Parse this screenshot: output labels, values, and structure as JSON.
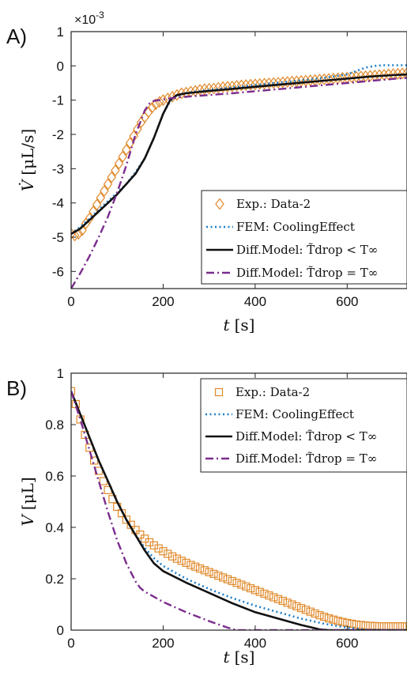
{
  "chart_data": [
    {
      "type": "line",
      "panel_label": "A)",
      "exponent_label": "×10",
      "exponent_power": "-3",
      "xlabel_var": "t",
      "xlabel_unit": "[s]",
      "ylabel_var": "V̇",
      "ylabel_unit": "[μL/s]",
      "xlim": [
        0,
        730
      ],
      "ylim": [
        -6.5,
        1
      ],
      "xticks": [
        0,
        200,
        400,
        600
      ],
      "yticks": [
        1,
        0,
        -1,
        -2,
        -3,
        -4,
        -5,
        -6
      ],
      "legend_position": "bottom-right",
      "series": [
        {
          "name": "Exp.: Data-2",
          "style": "markers-diamond",
          "color": "#e08a2c",
          "x": [
            0,
            8,
            16,
            24,
            32,
            40,
            48,
            56,
            64,
            72,
            80,
            88,
            96,
            104,
            112,
            120,
            128,
            136,
            144,
            152,
            160,
            168,
            176,
            184,
            192,
            200,
            210,
            220,
            230,
            240,
            250,
            260,
            270,
            280,
            290,
            300,
            310,
            320,
            330,
            340,
            350,
            360,
            370,
            380,
            390,
            400,
            410,
            420,
            430,
            440,
            450,
            460,
            470,
            480,
            490,
            500,
            510,
            520,
            530,
            540,
            550,
            560,
            570,
            580,
            590,
            600,
            610,
            620,
            630,
            640,
            650,
            660,
            670,
            680,
            690,
            700,
            710,
            720,
            730
          ],
          "y": [
            -4.9,
            -4.95,
            -4.9,
            -4.8,
            -4.6,
            -4.45,
            -4.25,
            -4.05,
            -3.85,
            -3.65,
            -3.45,
            -3.25,
            -3.05,
            -2.85,
            -2.65,
            -2.45,
            -2.25,
            -2.05,
            -1.85,
            -1.65,
            -1.5,
            -1.35,
            -1.22,
            -1.12,
            -1.05,
            -1.0,
            -0.95,
            -0.9,
            -0.85,
            -0.8,
            -0.78,
            -0.75,
            -0.73,
            -0.7,
            -0.68,
            -0.67,
            -0.66,
            -0.64,
            -0.62,
            -0.61,
            -0.6,
            -0.58,
            -0.57,
            -0.56,
            -0.55,
            -0.54,
            -0.53,
            -0.52,
            -0.51,
            -0.5,
            -0.49,
            -0.48,
            -0.47,
            -0.46,
            -0.45,
            -0.44,
            -0.43,
            -0.42,
            -0.41,
            -0.4,
            -0.39,
            -0.38,
            -0.37,
            -0.36,
            -0.35,
            -0.34,
            -0.33,
            -0.32,
            -0.31,
            -0.3,
            -0.29,
            -0.28,
            -0.27,
            -0.26,
            -0.25,
            -0.24,
            -0.23,
            -0.22,
            -0.21
          ]
        },
        {
          "name": "FEM: CoolingEffect",
          "style": "dotted",
          "color": "#1f7fc9",
          "x": [
            0,
            20,
            40,
            60,
            80,
            100,
            120,
            140,
            160,
            180,
            200,
            210,
            220,
            240,
            260,
            300,
            350,
            400,
            450,
            500,
            550,
            600,
            620,
            640,
            660,
            680,
            700,
            730
          ],
          "y": [
            -4.9,
            -4.7,
            -4.45,
            -4.2,
            -3.95,
            -3.7,
            -3.45,
            -3.1,
            -2.7,
            -2.1,
            -1.4,
            -1.15,
            -0.95,
            -0.82,
            -0.77,
            -0.7,
            -0.63,
            -0.56,
            -0.49,
            -0.42,
            -0.35,
            -0.25,
            -0.15,
            -0.05,
            0.0,
            0.02,
            0.02,
            0.02
          ]
        },
        {
          "name": "Diff.Model: T̃drop < T∞",
          "style": "solid",
          "color": "#111111",
          "x": [
            0,
            20,
            40,
            60,
            80,
            100,
            120,
            140,
            160,
            180,
            200,
            215,
            230,
            250,
            300,
            350,
            400,
            450,
            500,
            550,
            600,
            650,
            700,
            730
          ],
          "y": [
            -4.9,
            -4.75,
            -4.5,
            -4.25,
            -4.0,
            -3.75,
            -3.45,
            -3.15,
            -2.7,
            -2.1,
            -1.4,
            -1.0,
            -0.85,
            -0.8,
            -0.73,
            -0.67,
            -0.61,
            -0.55,
            -0.49,
            -0.43,
            -0.37,
            -0.31,
            -0.27,
            -0.25
          ]
        },
        {
          "name": "Diff.Model: T̃drop = T∞",
          "style": "dashdot",
          "color": "#7b2d8e",
          "x": [
            0,
            20,
            40,
            60,
            80,
            100,
            120,
            140,
            160,
            170,
            180,
            190,
            200,
            230,
            300,
            350,
            400,
            450,
            500,
            550,
            600,
            650,
            700,
            730
          ],
          "y": [
            -6.5,
            -6.05,
            -5.55,
            -5.0,
            -4.4,
            -3.7,
            -2.9,
            -2.0,
            -1.3,
            -1.1,
            -1.02,
            -1.0,
            -0.98,
            -0.92,
            -0.85,
            -0.8,
            -0.74,
            -0.68,
            -0.62,
            -0.56,
            -0.5,
            -0.44,
            -0.38,
            -0.35
          ]
        }
      ]
    },
    {
      "type": "line",
      "panel_label": "B)",
      "xlabel_var": "t",
      "xlabel_unit": "[s]",
      "ylabel_var": "V",
      "ylabel_unit": "[μL]",
      "xlim": [
        0,
        730
      ],
      "ylim": [
        0,
        1
      ],
      "xticks": [
        0,
        200,
        400,
        600
      ],
      "yticks": [
        1,
        0.8,
        0.6,
        0.4,
        0.2,
        0
      ],
      "ytick_labels": [
        "1",
        "0.8",
        "0.6",
        "0.4",
        "0.2",
        "0"
      ],
      "legend_position": "top-right",
      "series": [
        {
          "name": "Exp.: Data-2",
          "style": "markers-square",
          "color": "#e08a2c",
          "x": [
            0,
            10,
            20,
            30,
            40,
            50,
            60,
            70,
            80,
            90,
            100,
            110,
            120,
            130,
            140,
            150,
            160,
            170,
            180,
            190,
            200,
            210,
            220,
            230,
            240,
            250,
            260,
            270,
            280,
            290,
            300,
            310,
            320,
            330,
            340,
            350,
            360,
            370,
            380,
            390,
            400,
            410,
            420,
            430,
            440,
            450,
            460,
            470,
            480,
            490,
            500,
            510,
            520,
            530,
            540,
            550,
            560,
            570,
            580,
            590,
            600,
            610,
            620,
            630,
            640,
            650,
            660,
            670,
            680,
            690,
            700,
            710,
            720,
            730
          ],
          "y": [
            0.93,
            0.88,
            0.82,
            0.76,
            0.71,
            0.66,
            0.62,
            0.58,
            0.545,
            0.51,
            0.48,
            0.455,
            0.43,
            0.41,
            0.39,
            0.372,
            0.356,
            0.342,
            0.33,
            0.318,
            0.307,
            0.297,
            0.287,
            0.278,
            0.27,
            0.262,
            0.254,
            0.247,
            0.24,
            0.233,
            0.226,
            0.219,
            0.212,
            0.205,
            0.198,
            0.191,
            0.184,
            0.177,
            0.17,
            0.163,
            0.156,
            0.149,
            0.142,
            0.135,
            0.128,
            0.121,
            0.114,
            0.107,
            0.1,
            0.093,
            0.086,
            0.079,
            0.072,
            0.065,
            0.058,
            0.052,
            0.046,
            0.041,
            0.036,
            0.032,
            0.028,
            0.025,
            0.022,
            0.02,
            0.018,
            0.017,
            0.016,
            0.015,
            0.015,
            0.015,
            0.015,
            0.015,
            0.015,
            0.015
          ]
        },
        {
          "name": "FEM: CoolingEffect",
          "style": "dotted",
          "color": "#1f7fc9",
          "x": [
            0,
            20,
            40,
            60,
            80,
            100,
            120,
            140,
            160,
            180,
            200,
            250,
            300,
            350,
            400,
            450,
            500,
            550,
            600,
            640,
            680,
            730
          ],
          "y": [
            0.93,
            0.84,
            0.75,
            0.66,
            0.58,
            0.5,
            0.43,
            0.37,
            0.32,
            0.28,
            0.25,
            0.2,
            0.16,
            0.125,
            0.095,
            0.07,
            0.045,
            0.025,
            0.01,
            0.002,
            0.0,
            0.0
          ]
        },
        {
          "name": "Diff.Model: T̃drop < T∞",
          "style": "solid",
          "color": "#111111",
          "x": [
            0,
            20,
            40,
            60,
            80,
            100,
            120,
            140,
            160,
            180,
            200,
            250,
            300,
            350,
            400,
            450,
            500,
            540,
            560,
            730
          ],
          "y": [
            0.93,
            0.84,
            0.75,
            0.66,
            0.58,
            0.5,
            0.43,
            0.37,
            0.31,
            0.26,
            0.23,
            0.185,
            0.145,
            0.105,
            0.07,
            0.045,
            0.02,
            0.003,
            0.0,
            0.0
          ]
        },
        {
          "name": "Diff.Model: T̃drop = T∞",
          "style": "dashdot",
          "color": "#7b2d8e",
          "x": [
            0,
            20,
            40,
            60,
            80,
            100,
            120,
            140,
            150,
            160,
            180,
            200,
            250,
            300,
            340,
            360,
            380,
            730
          ],
          "y": [
            0.93,
            0.82,
            0.7,
            0.58,
            0.46,
            0.35,
            0.26,
            0.19,
            0.165,
            0.15,
            0.13,
            0.11,
            0.07,
            0.035,
            0.01,
            0.0,
            0.0,
            0.0
          ]
        }
      ]
    }
  ]
}
